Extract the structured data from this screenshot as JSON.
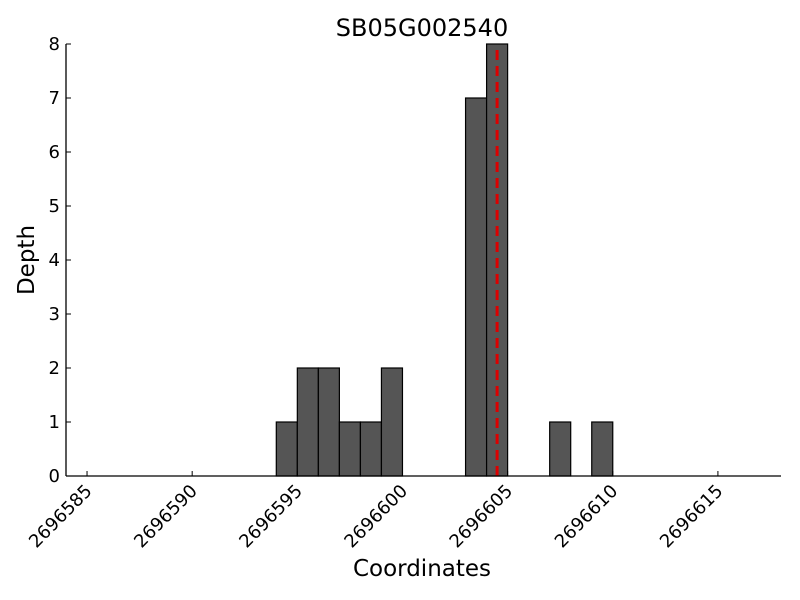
{
  "chart_data": {
    "type": "bar",
    "title": "SB05G002540",
    "xlabel": "Coordinates",
    "ylabel": "Depth",
    "xlim": [
      2696584,
      2696618
    ],
    "ylim": [
      0,
      8
    ],
    "bin_width": 1,
    "x_ticks": [
      2696585,
      2696590,
      2696595,
      2696600,
      2696605,
      2696610,
      2696615
    ],
    "y_ticks": [
      0,
      1,
      2,
      3,
      4,
      5,
      6,
      7,
      8
    ],
    "bars": [
      {
        "x": 2696594,
        "value": 1
      },
      {
        "x": 2696595,
        "value": 2
      },
      {
        "x": 2696596,
        "value": 2
      },
      {
        "x": 2696597,
        "value": 1
      },
      {
        "x": 2696598,
        "value": 1
      },
      {
        "x": 2696599,
        "value": 2
      },
      {
        "x": 2696603,
        "value": 7
      },
      {
        "x": 2696604,
        "value": 8
      },
      {
        "x": 2696607,
        "value": 1
      },
      {
        "x": 2696609,
        "value": 1
      }
    ],
    "marker_line": {
      "x": 2696604.5,
      "color": "#dd0000",
      "style": "dashed"
    },
    "bar_color": "#555555",
    "grid": false
  }
}
